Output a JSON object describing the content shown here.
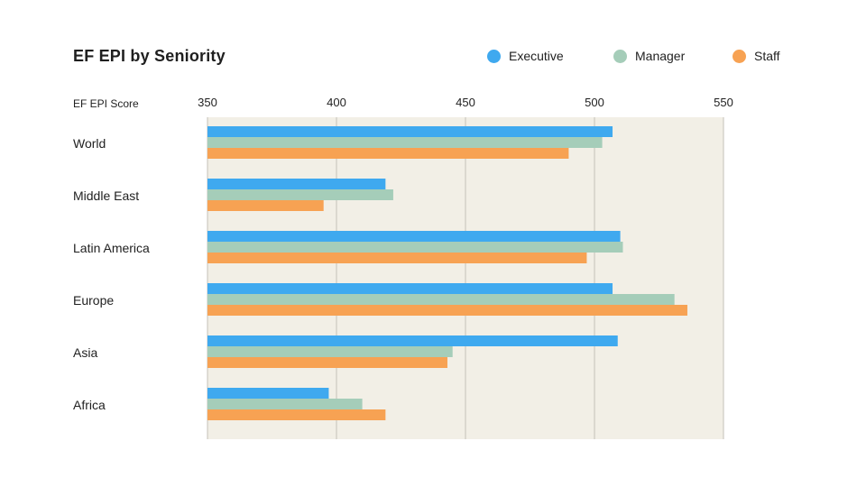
{
  "chart_data": {
    "type": "bar",
    "orientation": "horizontal",
    "title": "EF EPI by Seniority",
    "xlabel": "EF EPI Score",
    "ylabel": "",
    "xlim": [
      350,
      550
    ],
    "ticks": [
      350,
      400,
      450,
      500,
      550
    ],
    "grid": true,
    "legend_position": "top-right",
    "categories": [
      "World",
      "Middle East",
      "Latin America",
      "Europe",
      "Asia",
      "Africa"
    ],
    "series": [
      {
        "name": "Executive",
        "color": "#3fa9ef",
        "values": [
          507,
          419,
          510,
          507,
          509,
          397
        ]
      },
      {
        "name": "Manager",
        "color": "#a5cdb9",
        "values": [
          503,
          422,
          511,
          531,
          445,
          410
        ]
      },
      {
        "name": "Staff",
        "color": "#f7a253",
        "values": [
          490,
          395,
          497,
          536,
          443,
          419
        ]
      }
    ],
    "plot_background": "#f2efe6"
  }
}
